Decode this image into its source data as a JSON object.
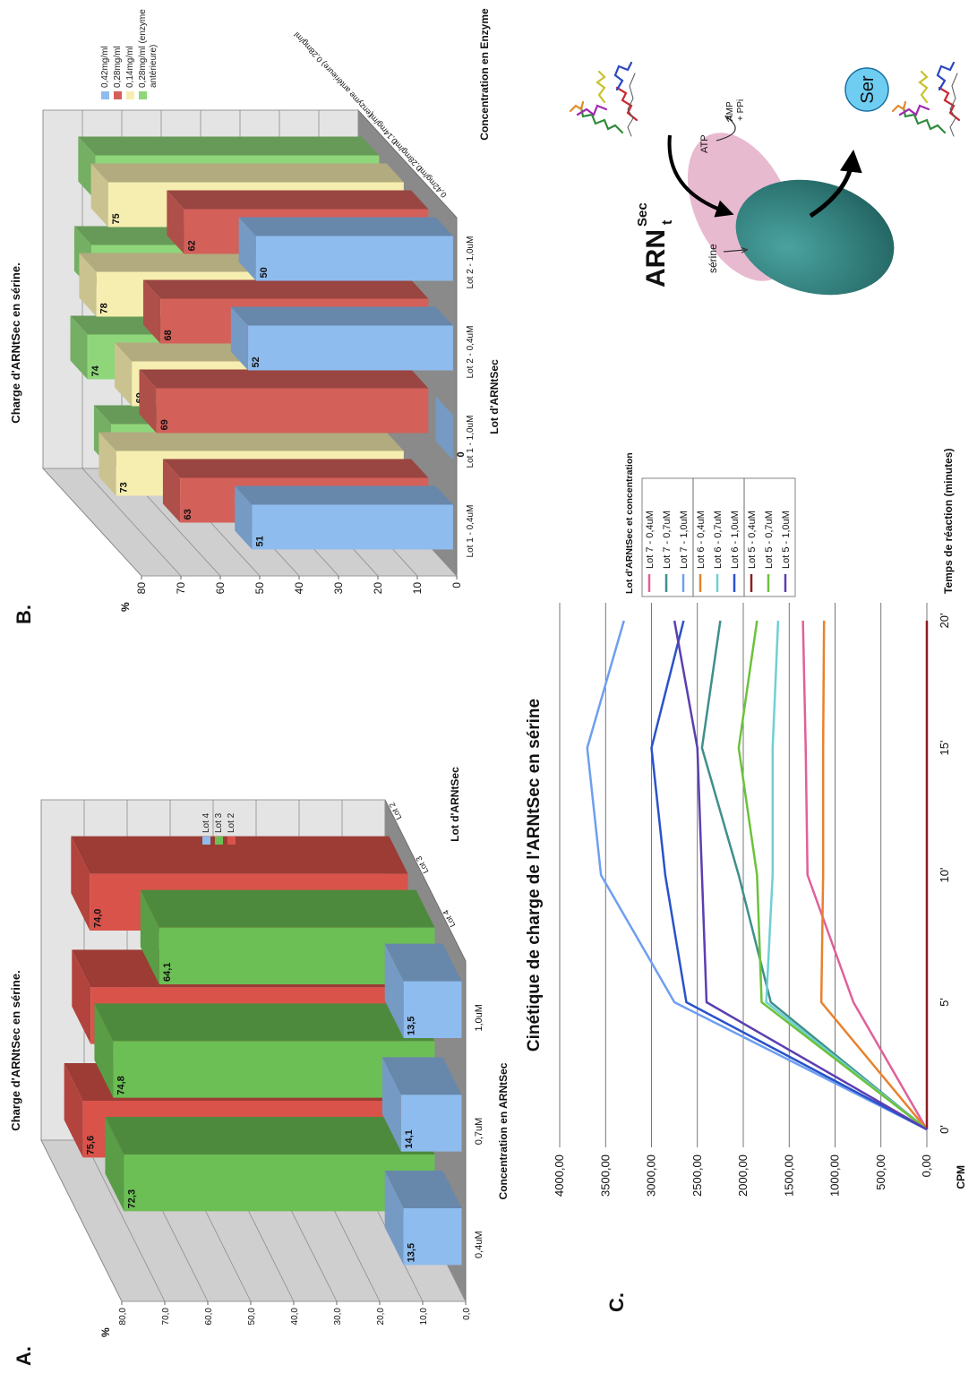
{
  "chart_data": [
    {
      "type": "bar3d",
      "panel_label": "A.",
      "title": "Charge d'ARNtSec en sérine.",
      "y_label": "%",
      "x_label": "Concentration en ARNtSec",
      "z_label": "Lot d'ARNtSec",
      "categories": [
        "0,4uM",
        "0,7uM",
        "1,0uM"
      ],
      "z_categories": [
        "Lot 4",
        "Lot 3",
        "Lot 2"
      ],
      "series": [
        {
          "name": "Lot 4",
          "color": "#8fbcee",
          "values": [
            13.5,
            14.1,
            13.5
          ],
          "value_labels": [
            "13,5",
            "14,1",
            "13,5"
          ]
        },
        {
          "name": "Lot 3",
          "color": "#6cbf55",
          "values": [
            72.3,
            74.8,
            64.1
          ],
          "value_labels": [
            "72,3",
            "74,8",
            "64,1"
          ]
        },
        {
          "name": "Lot 2",
          "color": "#d9534a",
          "values": [
            75.6,
            73.8,
            74.0
          ],
          "value_labels": [
            "75,6",
            "73,8",
            "74,0"
          ]
        }
      ],
      "ylim": [
        0,
        80
      ],
      "yticks": [
        {
          "value": 0,
          "label": "0,0"
        },
        {
          "value": 10,
          "label": "10,0"
        },
        {
          "value": 20,
          "label": "20,0"
        },
        {
          "value": 30,
          "label": "30,0"
        },
        {
          "value": 40,
          "label": "40,0"
        },
        {
          "value": 50,
          "label": "50,0"
        },
        {
          "value": 60,
          "label": "60,0"
        },
        {
          "value": 70,
          "label": "70,0"
        },
        {
          "value": 80,
          "label": "80,0"
        }
      ],
      "grid": true,
      "legend": "right"
    },
    {
      "type": "bar3d",
      "panel_label": "B.",
      "title": "Charge d'ARNtSec en sérine.",
      "y_label": "%",
      "x_label": "Lot d'ARNtSec",
      "z_label": "Concentration en Enzyme",
      "categories": [
        "Lot 1 - 0,4uM",
        "Lot 1 - 1,0uM",
        "Lot 2 - 0,4uM",
        "Lot 2 - 1,0uM"
      ],
      "z_categories": [
        "0,42mg/ml",
        "0,28mg/ml",
        "0,14mg/ml",
        "(enzyme antérieure) 0,28mg/ml"
      ],
      "series": [
        {
          "name": "0,42mg/ml",
          "color": "#8fbcee",
          "values": [
            51,
            0,
            52,
            50
          ]
        },
        {
          "name": "0,28mg/ml",
          "color": "#d4605a",
          "values": [
            63,
            69,
            68,
            62
          ]
        },
        {
          "name": "0,14mg/ml",
          "color": "#f6eeb0",
          "values": [
            73,
            69,
            78,
            75
          ]
        },
        {
          "name": "0,28mg/ml (enzyme antérieure)",
          "color": "#8fd67a",
          "values": [
            68,
            74,
            73,
            72
          ]
        }
      ],
      "ylim": [
        0,
        80
      ],
      "yticks": [
        0,
        10,
        20,
        30,
        40,
        50,
        60,
        70,
        80
      ],
      "grid": true,
      "legend": "right"
    },
    {
      "type": "line",
      "panel_label": "C.",
      "title": "Cinétique de charge de l'ARNtSec en sérine",
      "y_label": "CPM",
      "x_label": "Temps de réaction (minutes)",
      "legend_title": "Lot d'ARNtSec et concentration",
      "categories": [
        "0'",
        "5'",
        "10'",
        "15'",
        "20'"
      ],
      "series": [
        {
          "name": "Lot 7 - 0,4uM",
          "color": "#e0609a",
          "values": [
            0,
            800,
            1300,
            1320,
            1350
          ]
        },
        {
          "name": "Lot 7 - 0,7uM",
          "color": "#3f8f8a",
          "values": [
            0,
            1700,
            2050,
            2450,
            2250
          ]
        },
        {
          "name": "Lot 7 - 1,0uM",
          "color": "#6e9ff0",
          "values": [
            0,
            2750,
            3550,
            3700,
            3300
          ]
        },
        {
          "name": "Lot 6 - 0,4uM",
          "color": "#e8822e",
          "values": [
            0,
            1150,
            1130,
            1130,
            1120
          ]
        },
        {
          "name": "Lot 6 - 0,7uM",
          "color": "#6fd0d4",
          "values": [
            0,
            1750,
            1680,
            1680,
            1620
          ]
        },
        {
          "name": "Lot 6 - 1,0uM",
          "color": "#2a52c9",
          "values": [
            0,
            2620,
            2850,
            3000,
            2650
          ]
        },
        {
          "name": "Lot 5 - 0,4uM",
          "color": "#8b1f1f",
          "values": [
            0,
            0,
            0,
            0,
            0
          ]
        },
        {
          "name": "Lot 5 - 0,7uM",
          "color": "#6cc23a",
          "values": [
            0,
            1800,
            1850,
            2050,
            1850
          ]
        },
        {
          "name": "Lot 5 - 1,0uM",
          "color": "#5b3fb0",
          "values": [
            0,
            2400,
            2450,
            2500,
            2750
          ]
        }
      ],
      "ylim": [
        0,
        4000
      ],
      "yticks": [
        {
          "value": 0,
          "label": "0,00"
        },
        {
          "value": 500,
          "label": "500,00"
        },
        {
          "value": 1000,
          "label": "1000,00"
        },
        {
          "value": 1500,
          "label": "1500,00"
        },
        {
          "value": 2000,
          "label": "2000,00"
        },
        {
          "value": 2500,
          "label": "2500,00"
        },
        {
          "value": 3000,
          "label": "3000,00"
        },
        {
          "value": 3500,
          "label": "3500,00"
        },
        {
          "value": 4000,
          "label": "4000,00"
        }
      ],
      "grid": true,
      "legend": "right"
    }
  ],
  "diagram": {
    "trna_label": {
      "main": "ARN",
      "sub": "t",
      "sup": "Sec"
    },
    "serine": "sérine",
    "atp": "ATP",
    "amp_ppi": [
      "AMP",
      "+ PPi"
    ],
    "ser": "Ser"
  }
}
